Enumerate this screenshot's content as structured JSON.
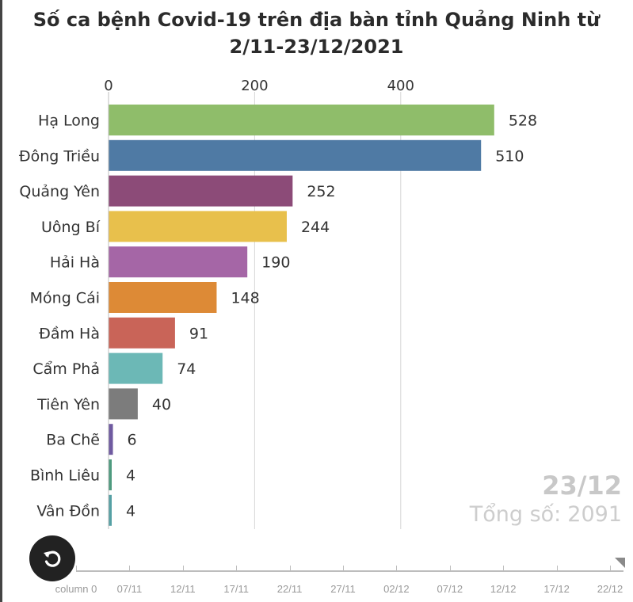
{
  "title_lines": [
    "Số ca bệnh Covid-19 trên địa bàn tỉnh Quảng Ninh từ",
    "2/11-23/12/2021"
  ],
  "current_date": "23/12",
  "total_label": "Tổng số:",
  "total_value": "2091",
  "timeline": {
    "labels": [
      "column 0",
      "07/11",
      "12/11",
      "17/11",
      "22/11",
      "27/11",
      "02/12",
      "07/12",
      "12/12",
      "17/12",
      "22/12"
    ],
    "position": 1.0
  },
  "chart_data": {
    "type": "bar",
    "orientation": "horizontal",
    "title": "Số ca bệnh Covid-19 trên địa bàn tỉnh Quảng Ninh từ 2/11-23/12/2021",
    "categories": [
      "Hạ Long",
      "Đông Triều",
      "Quảng Yên",
      "Uông Bí",
      "Hải Hà",
      "Móng Cái",
      "Đầm Hà",
      "Cẩm Phả",
      "Tiên Yên",
      "Ba Chẽ",
      "Bình Liêu",
      "Vân Đồn"
    ],
    "values": [
      528,
      510,
      252,
      244,
      190,
      148,
      91,
      74,
      40,
      6,
      4,
      4
    ],
    "colors": [
      "#8fbd6a",
      "#4f7aa4",
      "#8c4b78",
      "#e8c04c",
      "#a566a6",
      "#dd8a36",
      "#c96458",
      "#6cb8b6",
      "#7c7c7c",
      "#6f5aa0",
      "#4d9a7e",
      "#55a0a4"
    ],
    "xticks": [
      0,
      200,
      400
    ],
    "xlim": [
      0,
      600
    ],
    "grid": true,
    "xaxis_position": "top"
  }
}
